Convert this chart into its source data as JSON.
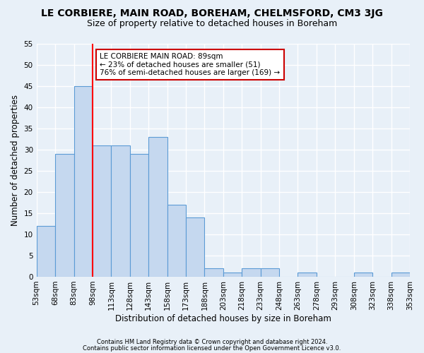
{
  "title": "LE CORBIERE, MAIN ROAD, BOREHAM, CHELMSFORD, CM3 3JG",
  "subtitle": "Size of property relative to detached houses in Boreham",
  "xlabel": "Distribution of detached houses by size in Boreham",
  "ylabel": "Number of detached properties",
  "footer1": "Contains HM Land Registry data © Crown copyright and database right 2024.",
  "footer2": "Contains public sector information licensed under the Open Government Licence v3.0.",
  "bar_values": [
    12,
    29,
    45,
    31,
    31,
    29,
    33,
    17,
    14,
    2,
    1,
    2,
    2,
    0,
    1,
    0,
    0,
    1,
    0,
    1
  ],
  "bar_labels": [
    "53sqm",
    "68sqm",
    "83sqm",
    "98sqm",
    "113sqm",
    "128sqm",
    "143sqm",
    "158sqm",
    "173sqm",
    "188sqm",
    "203sqm",
    "218sqm",
    "233sqm",
    "248sqm",
    "263sqm",
    "278sqm",
    "293sqm",
    "308sqm",
    "323sqm",
    "338sqm",
    "353sqm"
  ],
  "bar_color": "#c5d8ef",
  "bar_edge_color": "#5b9bd5",
  "red_line_x": 2.5,
  "annotation_line1": "LE CORBIERE MAIN ROAD: 89sqm",
  "annotation_line2": "← 23% of detached houses are smaller (51)",
  "annotation_line3": "76% of semi-detached houses are larger (169) →",
  "annotation_box_color": "#ffffff",
  "annotation_box_edge": "#cc0000",
  "ylim": [
    0,
    55
  ],
  "yticks": [
    0,
    5,
    10,
    15,
    20,
    25,
    30,
    35,
    40,
    45,
    50,
    55
  ],
  "bg_color": "#e8f0f8",
  "plot_bg_color": "#e8f0f8",
  "grid_color": "#ffffff",
  "title_fontsize": 10,
  "subtitle_fontsize": 9,
  "tick_fontsize": 7.5,
  "ylabel_fontsize": 8.5,
  "xlabel_fontsize": 8.5
}
